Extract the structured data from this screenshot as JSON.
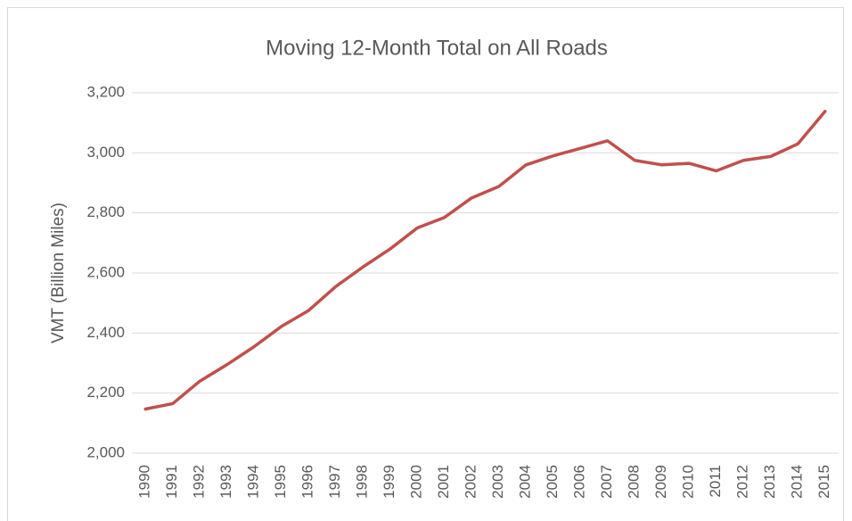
{
  "chart_data": {
    "type": "line",
    "title": "Moving 12-Month Total on All Roads",
    "y_label": "VMT (Billion Miles)",
    "categories": [
      "1990",
      "1991",
      "1992",
      "1993",
      "1994",
      "1995",
      "1996",
      "1997",
      "1998",
      "1999",
      "2000",
      "2001",
      "2002",
      "2003",
      "2004",
      "2005",
      "2006",
      "2007",
      "2008",
      "2009",
      "2010",
      "2011",
      "2012",
      "2013",
      "2014",
      "2015"
    ],
    "values": [
      2147,
      2165,
      2240,
      2295,
      2355,
      2422,
      2475,
      2555,
      2620,
      2680,
      2750,
      2785,
      2850,
      2888,
      2960,
      2990,
      3015,
      3040,
      2975,
      2960,
      2965,
      2940,
      2975,
      2988,
      3030,
      3138
    ],
    "color": "#c0504d",
    "ylim": [
      2000,
      3200
    ],
    "yticks": [
      {
        "value": 2000,
        "label": "2,000"
      },
      {
        "value": 2200,
        "label": "2,200"
      },
      {
        "value": 2400,
        "label": "2,400"
      },
      {
        "value": 2600,
        "label": "2,600"
      },
      {
        "value": 2800,
        "label": "2,800"
      },
      {
        "value": 3000,
        "label": "3,000"
      },
      {
        "value": 3200,
        "label": "3,200"
      }
    ],
    "grid": true
  }
}
